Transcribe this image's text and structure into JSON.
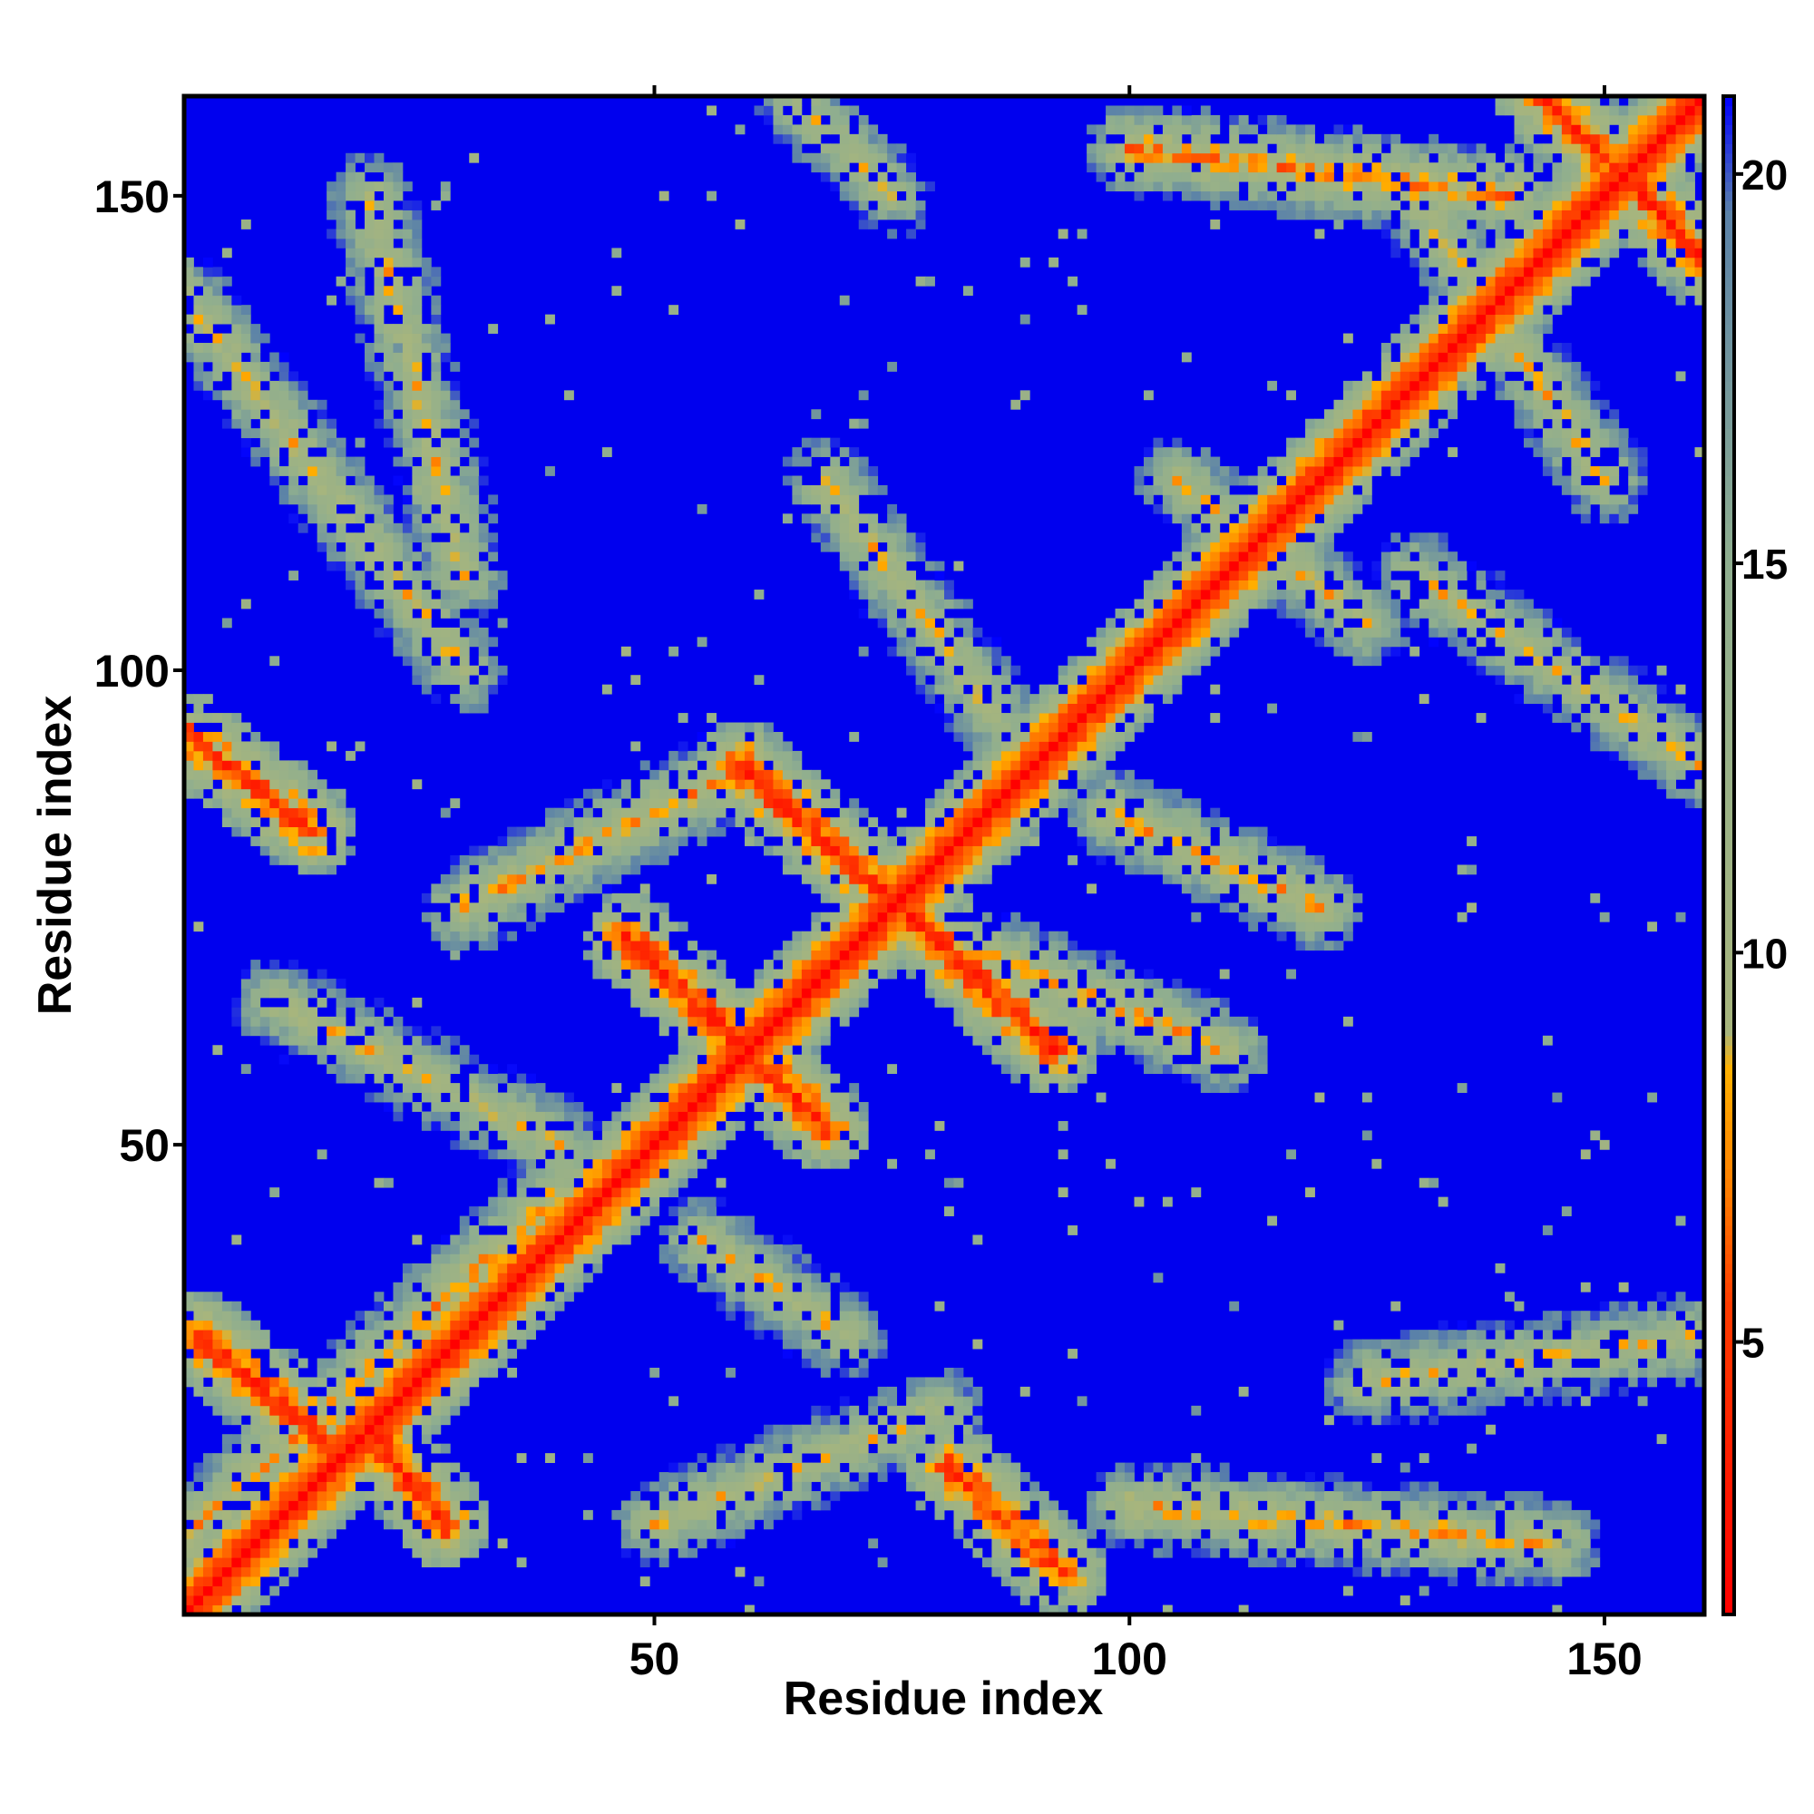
{
  "chart_data": {
    "type": "heatmap",
    "title": "",
    "xlabel": "Residue index",
    "ylabel": "Residue index",
    "x_range": [
      1,
      160
    ],
    "y_range": [
      1,
      160
    ],
    "x_ticks": [
      50,
      100,
      150
    ],
    "y_ticks": [
      50,
      100,
      150
    ],
    "colorbar": {
      "ticks": [
        5,
        10,
        15,
        20
      ],
      "range": [
        1.5,
        21
      ],
      "stops": [
        {
          "value": 1.5,
          "color": "#ff0000"
        },
        {
          "value": 5.5,
          "color": "#ff3b00"
        },
        {
          "value": 7.0,
          "color": "#ff7f00"
        },
        {
          "value": 8.5,
          "color": "#ffb000"
        },
        {
          "value": 9.0,
          "color": "#a7b57d"
        },
        {
          "value": 15.0,
          "color": "#8fae8f"
        },
        {
          "value": 19.5,
          "color": "#5b82a8"
        },
        {
          "value": 21.0,
          "color": "#0000ff"
        }
      ],
      "background_color": "#0000ee"
    },
    "description_values": {
      "diagonal_distance": 1.5,
      "saturation_value": 21
    },
    "contact_bands": [
      {
        "from_x": 2,
        "from_y": 30,
        "to_x": 15,
        "to_y": 19,
        "min": 4
      },
      {
        "from_x": 20,
        "from_y": 20,
        "to_x": 28,
        "to_y": 10,
        "min": 4
      },
      {
        "from_x": 1,
        "from_y": 93,
        "to_x": 14,
        "to_y": 83,
        "min": 4.5
      },
      {
        "from_x": 47,
        "from_y": 72,
        "to_x": 68,
        "to_y": 52,
        "min": 4
      },
      {
        "from_x": 59,
        "from_y": 90,
        "to_x": 77,
        "to_y": 74,
        "min": 4
      },
      {
        "from_x": 77,
        "from_y": 74,
        "to_x": 92,
        "to_y": 60,
        "min": 4
      },
      {
        "from_x": 81,
        "from_y": 16,
        "to_x": 93,
        "to_y": 5,
        "min": 4.5
      },
      {
        "from_x": 143,
        "from_y": 161,
        "to_x": 162,
        "to_y": 142,
        "min": 4
      },
      {
        "from_x": 0,
        "from_y": 140,
        "to_x": 30,
        "to_y": 100,
        "min": 9
      },
      {
        "from_x": 20,
        "from_y": 150,
        "to_x": 30,
        "to_y": 110,
        "min": 9
      },
      {
        "from_x": 68,
        "from_y": 120,
        "to_x": 86,
        "to_y": 95,
        "min": 9
      },
      {
        "from_x": 30,
        "from_y": 75,
        "to_x": 60,
        "to_y": 90,
        "min": 8
      },
      {
        "from_x": 98,
        "from_y": 85,
        "to_x": 120,
        "to_y": 75,
        "min": 8
      },
      {
        "from_x": 85,
        "from_y": 70,
        "to_x": 110,
        "to_y": 60,
        "min": 8
      },
      {
        "from_x": 0,
        "from_y": 8,
        "to_x": 40,
        "to_y": 45,
        "min": 8
      },
      {
        "from_x": 50,
        "from_y": 10,
        "to_x": 80,
        "to_y": 22,
        "min": 9
      },
      {
        "from_x": 100,
        "from_y": 12,
        "to_x": 145,
        "to_y": 8,
        "min": 8
      },
      {
        "from_x": 125,
        "from_y": 25,
        "to_x": 162,
        "to_y": 30,
        "min": 9
      },
      {
        "from_x": 100,
        "from_y": 155,
        "to_x": 140,
        "to_y": 150,
        "min": 7
      },
      {
        "from_x": 105,
        "from_y": 120,
        "to_x": 125,
        "to_y": 105,
        "min": 9
      },
      {
        "from_x": 130,
        "from_y": 110,
        "to_x": 160,
        "to_y": 90,
        "min": 9
      },
      {
        "from_x": 130,
        "from_y": 150,
        "to_x": 150,
        "to_y": 120,
        "min": 9
      },
      {
        "from_x": 10,
        "from_y": 65,
        "to_x": 40,
        "to_y": 50,
        "min": 9
      },
      {
        "from_x": 55,
        "from_y": 40,
        "to_x": 70,
        "to_y": 30,
        "min": 9
      },
      {
        "from_x": 65,
        "from_y": 160,
        "to_x": 75,
        "to_y": 150,
        "min": 10
      }
    ]
  }
}
